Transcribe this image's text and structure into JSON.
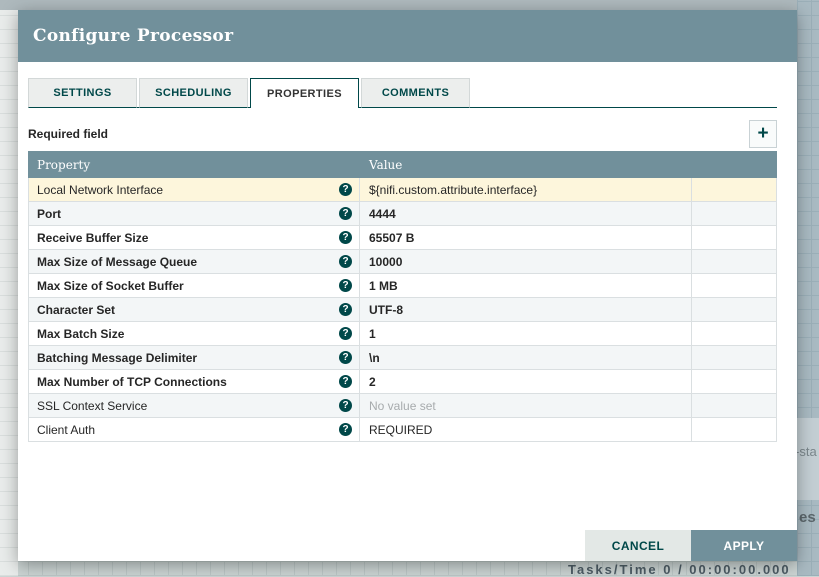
{
  "window": {
    "title": "Configure Processor"
  },
  "tabs": [
    {
      "label": "SETTINGS",
      "active": false
    },
    {
      "label": "SCHEDULING",
      "active": false
    },
    {
      "label": "PROPERTIES",
      "active": true
    },
    {
      "label": "COMMENTS",
      "active": false
    }
  ],
  "properties_tab": {
    "required_field_label": "Required field",
    "add_property_button": "+",
    "table": {
      "columns": [
        "Property",
        "Value"
      ],
      "rows": [
        {
          "name": "Local Network Interface",
          "value": "${nifi.custom.attribute.interface}",
          "required": false,
          "highlighted": true,
          "value_set": true
        },
        {
          "name": "Port",
          "value": "4444",
          "required": true,
          "highlighted": false,
          "value_set": true
        },
        {
          "name": "Receive Buffer Size",
          "value": "65507 B",
          "required": true,
          "highlighted": false,
          "value_set": true
        },
        {
          "name": "Max Size of Message Queue",
          "value": "10000",
          "required": true,
          "highlighted": false,
          "value_set": true
        },
        {
          "name": "Max Size of Socket Buffer",
          "value": "1 MB",
          "required": true,
          "highlighted": false,
          "value_set": true
        },
        {
          "name": "Character Set",
          "value": "UTF-8",
          "required": true,
          "highlighted": false,
          "value_set": true
        },
        {
          "name": "Max Batch Size",
          "value": "1",
          "required": true,
          "highlighted": false,
          "value_set": true
        },
        {
          "name": "Batching Message Delimiter",
          "value": "\\n",
          "required": true,
          "highlighted": false,
          "value_set": true
        },
        {
          "name": "Max Number of TCP Connections",
          "value": "2",
          "required": true,
          "highlighted": false,
          "value_set": true
        },
        {
          "name": "SSL Context Service",
          "value": "No value set",
          "required": false,
          "highlighted": false,
          "value_set": false
        },
        {
          "name": "Client Auth",
          "value": "REQUIRED",
          "required": false,
          "highlighted": false,
          "value_set": true
        }
      ]
    }
  },
  "footer": {
    "cancel_label": "CANCEL",
    "apply_label": "APPLY"
  },
  "help_icon_glyph": "?",
  "background_fragments": {
    "right_upper": "-sta",
    "right_lower": "es",
    "bottom_stats": "Tasks/Time   0 / 00:00:00.000"
  },
  "colors": {
    "accent_teal": "#004849",
    "dialog_header_bg": "#71909b",
    "table_header_bg": "#71909b",
    "highlight_row_bg": "#fdf6dc",
    "stripe_row_bg": "#f3f6f7",
    "apply_button_bg": "#71909b",
    "cancel_button_bg": "#e3e8e6",
    "muted_value_text": "#a7abad",
    "canvas_bg": "#ccd5d4"
  }
}
